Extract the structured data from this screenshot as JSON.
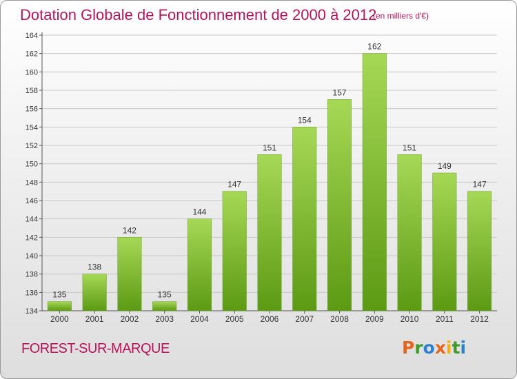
{
  "title": "Dotation Globale de Fonctionnement de 2000 à 2012",
  "subtitle": "(en milliers d'€)",
  "commune": "FOREST-SUR-MARQUE",
  "logo": {
    "letters": [
      "P",
      "r",
      "o",
      "x",
      "i",
      "t",
      "i"
    ],
    "colors": [
      "#e8641e",
      "#3e9a2b",
      "#2a7fd0",
      "#e8641e",
      "#f0b010",
      "#3e9a2b",
      "#2a7fd0"
    ]
  },
  "colors": {
    "accent": "#b5145b",
    "bar_top": "#a6d856",
    "bar_bottom": "#5c9a14",
    "grid": "#c8c8c8",
    "axis": "#555555"
  },
  "chart_data": {
    "type": "bar",
    "categories": [
      "2000",
      "2001",
      "2002",
      "2003",
      "2004",
      "2005",
      "2006",
      "2007",
      "2008",
      "2009",
      "2010",
      "2011",
      "2012"
    ],
    "values": [
      135,
      138,
      142,
      135,
      144,
      147,
      151,
      154,
      157,
      162,
      151,
      149,
      147
    ],
    "ylim": [
      134,
      164
    ],
    "yticks": [
      134,
      136,
      138,
      140,
      142,
      144,
      146,
      148,
      150,
      152,
      154,
      156,
      158,
      160,
      162,
      164
    ],
    "grid": true,
    "data_labels": true
  }
}
